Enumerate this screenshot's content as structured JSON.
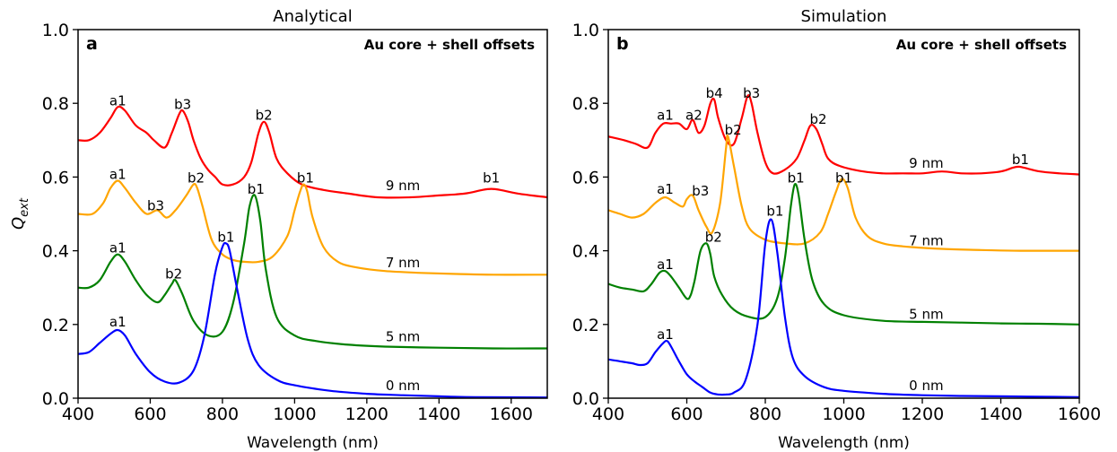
{
  "colors": {
    "red": "#ff0000",
    "orange": "#ffa500",
    "green": "#008000",
    "blue": "#0000ff"
  },
  "chart_data": [
    {
      "type": "line",
      "title": "Analytical",
      "panel_label": "a",
      "annotation": "Au core + shell offsets",
      "xlabel": "Wavelength (nm)",
      "ylabel": "Q_ext",
      "xlim": [
        400,
        1700
      ],
      "ylim": [
        0,
        1.0
      ],
      "xticks": [
        400,
        600,
        800,
        1000,
        1200,
        1400,
        1600
      ],
      "yticks": [
        0.0,
        0.2,
        0.4,
        0.6,
        0.8,
        1.0
      ],
      "series": [
        {
          "name": "9 nm",
          "color": "#ff0000",
          "x": [
            400,
            430,
            460,
            490,
            510,
            530,
            560,
            590,
            610,
            640,
            660,
            680,
            690,
            705,
            720,
            740,
            760,
            780,
            800,
            830,
            860,
            880,
            900,
            915,
            930,
            950,
            980,
            1020,
            1080,
            1150,
            1230,
            1320,
            1400,
            1470,
            1520,
            1545,
            1570,
            1620,
            1700
          ],
          "y": [
            0.7,
            0.7,
            0.72,
            0.76,
            0.79,
            0.78,
            0.74,
            0.72,
            0.7,
            0.68,
            0.72,
            0.77,
            0.78,
            0.75,
            0.7,
            0.65,
            0.62,
            0.6,
            0.58,
            0.58,
            0.6,
            0.64,
            0.72,
            0.75,
            0.72,
            0.65,
            0.61,
            0.58,
            0.565,
            0.555,
            0.545,
            0.545,
            0.55,
            0.555,
            0.565,
            0.568,
            0.565,
            0.555,
            0.545
          ]
        },
        {
          "name": "7 nm",
          "color": "#ffa500",
          "x": [
            400,
            440,
            470,
            490,
            510,
            530,
            560,
            590,
            620,
            645,
            670,
            700,
            720,
            730,
            745,
            770,
            800,
            830,
            860,
            900,
            940,
            980,
            1000,
            1015,
            1025,
            1035,
            1050,
            1080,
            1120,
            1170,
            1250,
            1350,
            1450,
            1550,
            1700
          ],
          "y": [
            0.5,
            0.5,
            0.53,
            0.57,
            0.59,
            0.57,
            0.53,
            0.5,
            0.51,
            0.49,
            0.51,
            0.55,
            0.58,
            0.57,
            0.52,
            0.43,
            0.39,
            0.375,
            0.37,
            0.37,
            0.385,
            0.44,
            0.51,
            0.56,
            0.58,
            0.56,
            0.49,
            0.41,
            0.37,
            0.355,
            0.345,
            0.34,
            0.337,
            0.335,
            0.335
          ]
        },
        {
          "name": "5 nm",
          "color": "#008000",
          "x": [
            400,
            430,
            460,
            490,
            510,
            530,
            560,
            590,
            620,
            640,
            660,
            670,
            690,
            720,
            760,
            800,
            830,
            860,
            875,
            890,
            905,
            920,
            950,
            1000,
            1060,
            1150,
            1250,
            1400,
            1550,
            1700
          ],
          "y": [
            0.3,
            0.3,
            0.32,
            0.37,
            0.39,
            0.37,
            0.32,
            0.28,
            0.26,
            0.28,
            0.31,
            0.32,
            0.28,
            0.21,
            0.17,
            0.18,
            0.26,
            0.42,
            0.52,
            0.55,
            0.48,
            0.35,
            0.22,
            0.17,
            0.155,
            0.145,
            0.14,
            0.137,
            0.135,
            0.135
          ]
        },
        {
          "name": "0 nm",
          "color": "#0000ff",
          "x": [
            400,
            430,
            460,
            490,
            510,
            530,
            560,
            600,
            640,
            680,
            720,
            750,
            780,
            800,
            810,
            820,
            840,
            870,
            900,
            950,
            1000,
            1100,
            1200,
            1300,
            1400,
            1500,
            1700
          ],
          "y": [
            0.12,
            0.125,
            0.15,
            0.175,
            0.185,
            0.17,
            0.12,
            0.07,
            0.045,
            0.042,
            0.075,
            0.17,
            0.34,
            0.41,
            0.42,
            0.4,
            0.3,
            0.16,
            0.09,
            0.05,
            0.035,
            0.02,
            0.012,
            0.008,
            0.005,
            0.003,
            0.002
          ]
        }
      ],
      "labels": [
        {
          "text": "a1",
          "x": 510,
          "y": 0.795
        },
        {
          "text": "b3",
          "x": 690,
          "y": 0.785
        },
        {
          "text": "b2",
          "x": 915,
          "y": 0.755
        },
        {
          "text": "a1",
          "x": 510,
          "y": 0.595
        },
        {
          "text": "b2",
          "x": 727,
          "y": 0.585
        },
        {
          "text": "b3",
          "x": 615,
          "y": 0.51
        },
        {
          "text": "b1",
          "x": 893,
          "y": 0.555
        },
        {
          "text": "b1",
          "x": 1030,
          "y": 0.585
        },
        {
          "text": "b1",
          "x": 1545,
          "y": 0.585
        },
        {
          "text": "a1",
          "x": 510,
          "y": 0.395
        },
        {
          "text": "b2",
          "x": 665,
          "y": 0.325
        },
        {
          "text": "b1",
          "x": 810,
          "y": 0.425
        },
        {
          "text": "a1",
          "x": 510,
          "y": 0.195
        },
        {
          "text": "9 nm",
          "x": 1300,
          "y": 0.565
        },
        {
          "text": "7 nm",
          "x": 1300,
          "y": 0.355
        },
        {
          "text": "5 nm",
          "x": 1300,
          "y": 0.155
        },
        {
          "text": "0 nm",
          "x": 1300,
          "y": 0.022
        }
      ]
    },
    {
      "type": "line",
      "title": "Simulation",
      "panel_label": "b",
      "annotation": "Au core + shell offsets",
      "xlabel": "Wavelength (nm)",
      "ylabel": "",
      "xlim": [
        400,
        1600
      ],
      "ylim": [
        0,
        1.0
      ],
      "xticks": [
        400,
        600,
        800,
        1000,
        1200,
        1400,
        1600
      ],
      "yticks": [
        0.0,
        0.2,
        0.4,
        0.6,
        0.8,
        1.0
      ],
      "series": [
        {
          "name": "9 nm",
          "color": "#ff0000",
          "x": [
            400,
            440,
            470,
            500,
            520,
            540,
            560,
            580,
            600,
            615,
            630,
            645,
            660,
            670,
            680,
            700,
            720,
            740,
            755,
            765,
            780,
            800,
            820,
            850,
            880,
            900,
            915,
            930,
            945,
            960,
            990,
            1050,
            1100,
            1150,
            1200,
            1250,
            1300,
            1350,
            1400,
            1430,
            1445,
            1460,
            1500,
            1550,
            1600
          ],
          "y": [
            0.71,
            0.7,
            0.69,
            0.68,
            0.72,
            0.745,
            0.745,
            0.745,
            0.73,
            0.755,
            0.72,
            0.74,
            0.8,
            0.81,
            0.76,
            0.7,
            0.69,
            0.76,
            0.82,
            0.8,
            0.72,
            0.64,
            0.61,
            0.62,
            0.65,
            0.7,
            0.74,
            0.73,
            0.69,
            0.65,
            0.63,
            0.615,
            0.61,
            0.61,
            0.61,
            0.615,
            0.61,
            0.61,
            0.615,
            0.625,
            0.628,
            0.625,
            0.615,
            0.61,
            0.607
          ]
        },
        {
          "name": "7 nm",
          "color": "#ffa500",
          "x": [
            400,
            430,
            460,
            490,
            520,
            545,
            570,
            590,
            600,
            615,
            630,
            650,
            665,
            685,
            700,
            705,
            720,
            740,
            760,
            800,
            850,
            900,
            940,
            960,
            980,
            995,
            1010,
            1030,
            1060,
            1100,
            1150,
            1250,
            1350,
            1450,
            1600
          ],
          "y": [
            0.51,
            0.5,
            0.49,
            0.5,
            0.53,
            0.545,
            0.53,
            0.52,
            0.54,
            0.55,
            0.51,
            0.465,
            0.45,
            0.53,
            0.68,
            0.71,
            0.63,
            0.52,
            0.46,
            0.43,
            0.42,
            0.42,
            0.45,
            0.5,
            0.56,
            0.595,
            0.57,
            0.49,
            0.44,
            0.42,
            0.412,
            0.405,
            0.402,
            0.4,
            0.4
          ]
        },
        {
          "name": "5 nm",
          "color": "#008000",
          "x": [
            400,
            430,
            460,
            490,
            510,
            530,
            545,
            560,
            580,
            600,
            610,
            620,
            635,
            650,
            660,
            670,
            690,
            720,
            760,
            800,
            830,
            850,
            865,
            875,
            885,
            900,
            920,
            950,
            1000,
            1100,
            1200,
            1300,
            1400,
            1500,
            1600
          ],
          "y": [
            0.31,
            0.3,
            0.295,
            0.29,
            0.31,
            0.34,
            0.345,
            0.33,
            0.3,
            0.27,
            0.28,
            0.32,
            0.4,
            0.42,
            0.39,
            0.33,
            0.28,
            0.24,
            0.22,
            0.22,
            0.27,
            0.38,
            0.52,
            0.58,
            0.55,
            0.43,
            0.32,
            0.255,
            0.225,
            0.21,
            0.207,
            0.205,
            0.203,
            0.202,
            0.2
          ]
        },
        {
          "name": "0 nm",
          "color": "#0000ff",
          "x": [
            400,
            430,
            460,
            480,
            500,
            520,
            540,
            550,
            560,
            580,
            600,
            620,
            640,
            660,
            680,
            700,
            720,
            750,
            780,
            800,
            815,
            830,
            850,
            870,
            900,
            950,
            1000,
            1100,
            1200,
            1300,
            1400,
            1500,
            1600
          ],
          "y": [
            0.105,
            0.1,
            0.095,
            0.09,
            0.095,
            0.125,
            0.15,
            0.155,
            0.14,
            0.1,
            0.065,
            0.045,
            0.03,
            0.015,
            0.01,
            0.01,
            0.015,
            0.05,
            0.2,
            0.42,
            0.485,
            0.4,
            0.22,
            0.11,
            0.06,
            0.03,
            0.02,
            0.012,
            0.008,
            0.006,
            0.005,
            0.004,
            0.003
          ]
        }
      ],
      "labels": [
        {
          "text": "a1",
          "x": 545,
          "y": 0.755
        },
        {
          "text": "a2",
          "x": 618,
          "y": 0.755
        },
        {
          "text": "b4",
          "x": 670,
          "y": 0.815
        },
        {
          "text": "b3",
          "x": 765,
          "y": 0.815
        },
        {
          "text": "b2",
          "x": 718,
          "y": 0.715
        },
        {
          "text": "b2",
          "x": 935,
          "y": 0.745
        },
        {
          "text": "9 nm",
          "x": 1210,
          "y": 0.625
        },
        {
          "text": "b1",
          "x": 1450,
          "y": 0.635
        },
        {
          "text": "a1",
          "x": 545,
          "y": 0.555
        },
        {
          "text": "b3",
          "x": 635,
          "y": 0.55
        },
        {
          "text": "b1",
          "x": 878,
          "y": 0.585
        },
        {
          "text": "b1",
          "x": 1000,
          "y": 0.585
        },
        {
          "text": "b1",
          "x": 825,
          "y": 0.495
        },
        {
          "text": "7 nm",
          "x": 1210,
          "y": 0.415
        },
        {
          "text": "a1",
          "x": 545,
          "y": 0.35
        },
        {
          "text": "b2",
          "x": 668,
          "y": 0.425
        },
        {
          "text": "5 nm",
          "x": 1210,
          "y": 0.215
        },
        {
          "text": "a1",
          "x": 545,
          "y": 0.16
        },
        {
          "text": "0 nm",
          "x": 1210,
          "y": 0.022
        }
      ]
    }
  ]
}
